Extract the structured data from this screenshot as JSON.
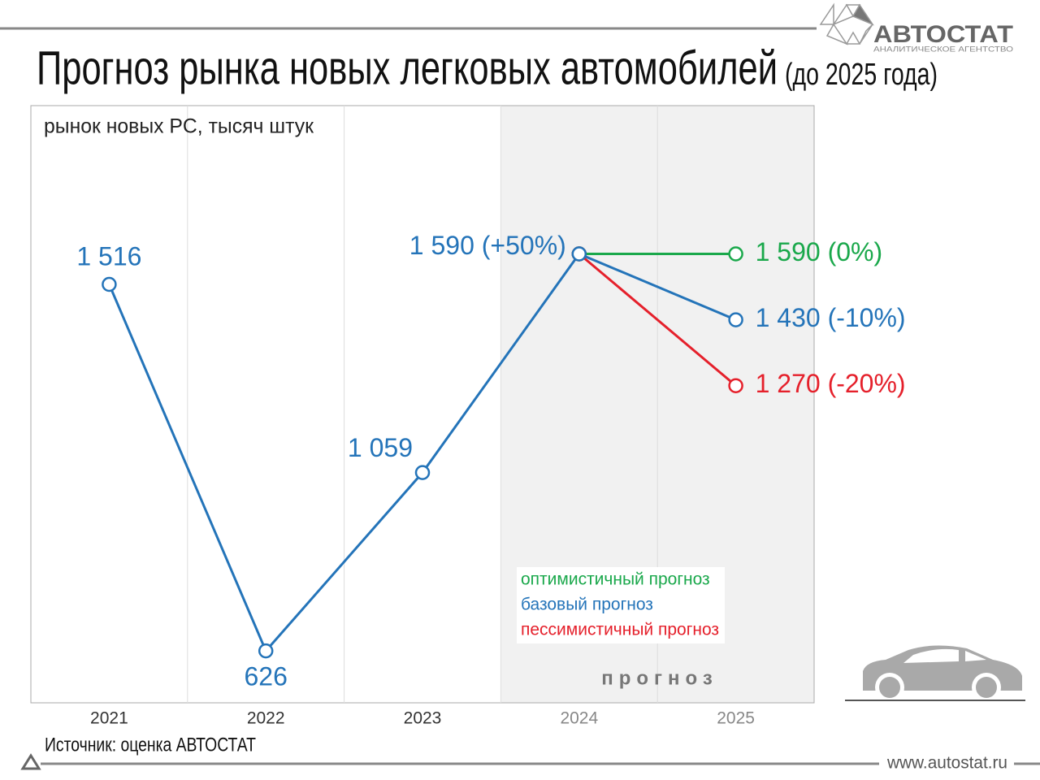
{
  "logo": {
    "name": "АВТОСТАТ",
    "tagline": "АНАЛИТИЧЕСКОЕ АГЕНТСТВО"
  },
  "footer": {
    "source": "Источник: оценка АВТОСТАТ",
    "url": "www.autostat.ru"
  },
  "chart_data": {
    "type": "line",
    "title": "Прогноз рынка новых легковых автомобилей",
    "title_note": "(до 2025 года)",
    "y_label": "рынок новых PC, тысяч штук",
    "categories": [
      "2021",
      "2022",
      "2023",
      "2024",
      "2025"
    ],
    "series": [
      {
        "name": "оптимистичный прогноз",
        "color": "#1aa84b",
        "values": [
          null,
          null,
          null,
          1590,
          1590
        ],
        "value_labels": [
          null,
          null,
          null,
          null,
          "1 590 (0%)"
        ]
      },
      {
        "name": "базовый прогноз",
        "color": "#2474b9",
        "values": [
          1516,
          626,
          1059,
          1590,
          1430
        ],
        "value_labels": [
          "1 516",
          "626",
          "1 059",
          "1 590 (+50%)",
          "1 430 (-10%)"
        ]
      },
      {
        "name": "пессимистичный прогноз",
        "color": "#e5202b",
        "values": [
          null,
          null,
          null,
          1590,
          1270
        ],
        "value_labels": [
          null,
          null,
          null,
          null,
          "1 270 (-20%)"
        ]
      }
    ],
    "ylim": [
      500,
      1950
    ],
    "grid": true,
    "legend": "bottom-right",
    "forecast": {
      "label": "прогноз",
      "categories": [
        "2024",
        "2025"
      ]
    }
  }
}
